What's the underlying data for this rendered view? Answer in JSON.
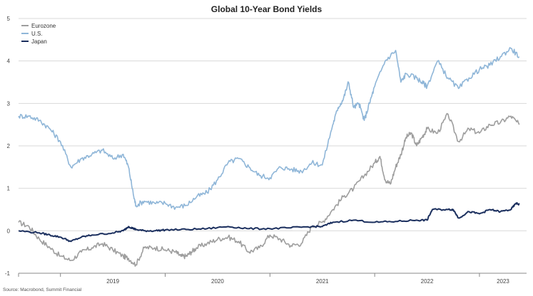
{
  "chart_data": {
    "type": "line",
    "title": "Global 10-Year Bond Yields",
    "source": "Source: Macrobond, Summit Financial",
    "ylim": [
      -1,
      5
    ],
    "yticks": [
      -1,
      0,
      1,
      2,
      3,
      4,
      5
    ],
    "ytick_labels": [
      "-1",
      "0",
      "1",
      "2",
      "3",
      "4",
      "5"
    ],
    "xlim": [
      2018.6,
      2023.45
    ],
    "xtick_labels": [
      "2019",
      "2020",
      "2021",
      "2022",
      "2023"
    ],
    "xtick_boundaries": [
      2018.6,
      2019.0,
      2020.0,
      2021.0,
      2022.0,
      2023.0
    ],
    "grid": "horizontal",
    "legend_position": "top-left",
    "series": [
      {
        "name": "Eurozone",
        "color": "#9e9e9e",
        "x": [
          2018.6,
          2018.7,
          2018.8,
          2018.9,
          2019.0,
          2019.1,
          2019.2,
          2019.3,
          2019.4,
          2019.5,
          2019.6,
          2019.65,
          2019.72,
          2019.8,
          2019.9,
          2020.0,
          2020.1,
          2020.15,
          2020.2,
          2020.25,
          2020.3,
          2020.4,
          2020.5,
          2020.6,
          2020.7,
          2020.8,
          2020.9,
          2021.0,
          2021.1,
          2021.2,
          2021.3,
          2021.4,
          2021.5,
          2021.6,
          2021.7,
          2021.8,
          2021.9,
          2022.0,
          2022.05,
          2022.1,
          2022.15,
          2022.2,
          2022.25,
          2022.3,
          2022.35,
          2022.4,
          2022.45,
          2022.5,
          2022.6,
          2022.7,
          2022.8,
          2022.9,
          2023.0,
          2023.1,
          2023.2,
          2023.3,
          2023.38
        ],
        "y": [
          0.2,
          0.1,
          -0.2,
          -0.4,
          -0.6,
          -0.7,
          -0.5,
          -0.4,
          -0.3,
          -0.45,
          -0.6,
          -0.65,
          -0.8,
          -0.4,
          -0.4,
          -0.45,
          -0.5,
          -0.6,
          -0.6,
          -0.5,
          -0.4,
          -0.3,
          -0.2,
          -0.15,
          -0.25,
          -0.5,
          -0.4,
          -0.1,
          -0.2,
          -0.35,
          -0.3,
          0.1,
          0.2,
          0.5,
          0.8,
          1.0,
          1.3,
          1.6,
          1.75,
          1.2,
          1.1,
          1.5,
          1.8,
          2.2,
          2.3,
          2.0,
          2.2,
          2.4,
          2.3,
          2.75,
          2.1,
          2.4,
          2.3,
          2.5,
          2.55,
          2.7,
          2.5
        ],
        "x_extra": [
          2021.5,
          2021.55,
          2021.6,
          2021.65,
          2021.7,
          2021.75,
          2021.8,
          2021.85,
          2021.9,
          2021.95
        ],
        "y_extra": [
          -0.35,
          -0.25,
          -0.05,
          0.15,
          0.4,
          0.55,
          0.75,
          0.85,
          1.0,
          1.15
        ]
      },
      {
        "name": "U.S.",
        "color": "#8fb6d8",
        "x": [
          2018.6,
          2018.7,
          2018.8,
          2018.9,
          2019.0,
          2019.1,
          2019.2,
          2019.3,
          2019.4,
          2019.5,
          2019.6,
          2019.65,
          2019.7,
          2019.72,
          2019.8,
          2019.9,
          2020.0,
          2020.1,
          2020.2,
          2020.3,
          2020.4,
          2020.5,
          2020.6,
          2020.7,
          2020.8,
          2020.9,
          2021.0,
          2021.1,
          2021.2,
          2021.3,
          2021.4,
          2021.5,
          2021.6,
          2021.65,
          2021.7,
          2021.75,
          2021.8,
          2021.85,
          2021.9,
          2021.95,
          2022.0,
          2022.1,
          2022.2,
          2022.25,
          2022.3,
          2022.4,
          2022.45,
          2022.5,
          2022.6,
          2022.7,
          2022.8,
          2022.9,
          2023.0,
          2023.1,
          2023.2,
          2023.3,
          2023.38
        ],
        "y": [
          2.7,
          2.7,
          2.6,
          2.4,
          2.1,
          1.5,
          1.7,
          1.8,
          1.9,
          1.7,
          1.8,
          1.5,
          0.8,
          0.6,
          0.7,
          0.65,
          0.65,
          0.55,
          0.6,
          0.8,
          0.9,
          1.2,
          1.6,
          1.7,
          1.5,
          1.3,
          1.25,
          1.5,
          1.45,
          1.4,
          1.6,
          1.55,
          2.5,
          2.9,
          3.1,
          3.5,
          2.9,
          3.0,
          2.6,
          3.0,
          3.4,
          4.0,
          4.25,
          3.5,
          3.7,
          3.6,
          3.5,
          3.4,
          4.0,
          3.6,
          3.35,
          3.6,
          3.8,
          3.9,
          4.1,
          4.3,
          4.1
        ]
      },
      {
        "name": "Japan",
        "color": "#1b2f5e",
        "x": [
          2018.6,
          2018.8,
          2018.9,
          2019.0,
          2019.1,
          2019.2,
          2019.3,
          2019.5,
          2019.6,
          2019.65,
          2019.7,
          2019.72,
          2019.8,
          2019.9,
          2020.0,
          2020.2,
          2020.4,
          2020.6,
          2020.8,
          2021.0,
          2021.2,
          2021.4,
          2021.5,
          2021.6,
          2021.8,
          2022.0,
          2022.2,
          2022.4,
          2022.5,
          2022.55,
          2022.7,
          2022.75,
          2022.8,
          2022.9,
          2023.0,
          2023.1,
          2023.2,
          2023.3,
          2023.35,
          2023.38
        ],
        "y": [
          0.0,
          -0.05,
          -0.1,
          -0.15,
          -0.25,
          -0.15,
          -0.1,
          -0.05,
          0.0,
          0.1,
          0.05,
          0.03,
          0.0,
          0.0,
          0.02,
          0.03,
          0.05,
          0.1,
          0.05,
          0.05,
          0.07,
          0.1,
          0.1,
          0.2,
          0.25,
          0.2,
          0.22,
          0.25,
          0.25,
          0.5,
          0.5,
          0.5,
          0.3,
          0.45,
          0.4,
          0.5,
          0.45,
          0.5,
          0.65,
          0.62
        ]
      }
    ]
  }
}
